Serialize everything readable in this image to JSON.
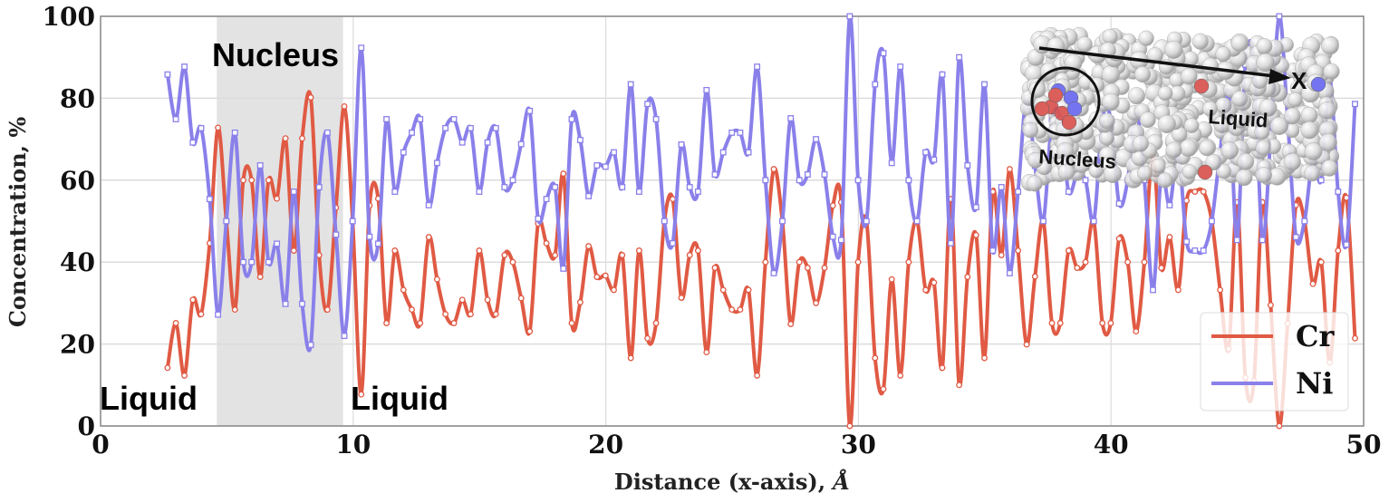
{
  "chart_data": {
    "type": "line",
    "title": "",
    "xlabel": "Distance (x-axis), ",
    "xlabel_unit": "Å",
    "ylabel": "Concentration, %",
    "xlim": [
      0,
      50
    ],
    "ylim": [
      0,
      100
    ],
    "xticks": [
      "0",
      "10",
      "20",
      "30",
      "40",
      "50"
    ],
    "yticks": [
      "0",
      "20",
      "40",
      "60",
      "80",
      "100"
    ],
    "grid": true,
    "legend_position": "bottom-right",
    "shaded_region": {
      "x_range": [
        4.6,
        9.6
      ],
      "color": "#e3e3e3"
    },
    "annotations": {
      "nucleus": "Nucleus",
      "liquid_left": "Liquid",
      "liquid_right": "Liquid"
    },
    "inset": {
      "nucleus_label": "Nucleus",
      "liquid_label": "Liquid",
      "axis_label": "X"
    },
    "x": [
      2.65,
      2.98,
      3.32,
      3.65,
      3.98,
      4.32,
      4.65,
      4.98,
      5.32,
      5.65,
      5.98,
      6.32,
      6.65,
      6.98,
      7.32,
      7.65,
      7.98,
      8.32,
      8.65,
      8.98,
      9.32,
      9.65,
      9.98,
      10.32,
      10.65,
      10.99,
      11.32,
      11.65,
      11.99,
      12.32,
      12.65,
      12.99,
      13.32,
      13.65,
      13.99,
      14.32,
      14.65,
      14.99,
      15.32,
      15.65,
      15.99,
      16.32,
      16.65,
      16.99,
      17.32,
      17.65,
      17.99,
      18.32,
      18.65,
      18.99,
      19.32,
      19.65,
      19.99,
      20.32,
      20.65,
      20.99,
      21.32,
      21.65,
      21.99,
      22.32,
      22.65,
      22.99,
      23.32,
      23.65,
      23.99,
      24.32,
      24.65,
      24.99,
      25.32,
      25.65,
      25.99,
      26.32,
      26.65,
      26.99,
      27.32,
      27.66,
      27.99,
      28.32,
      28.66,
      28.99,
      29.32,
      29.66,
      29.99,
      30.32,
      30.66,
      30.99,
      31.32,
      31.66,
      31.99,
      32.32,
      32.66,
      32.99,
      33.32,
      33.66,
      33.99,
      34.32,
      34.66,
      34.99,
      35.32,
      35.66,
      35.99,
      36.32,
      36.66,
      36.99,
      37.32,
      37.66,
      37.99,
      38.32,
      38.66,
      38.99,
      39.32,
      39.66,
      39.99,
      40.32,
      40.66,
      40.99,
      41.32,
      41.66,
      41.99,
      42.32,
      42.66,
      42.99,
      43.32,
      43.66,
      43.99,
      44.32,
      44.66,
      44.99,
      45.32,
      45.66,
      45.99,
      46.32,
      46.66,
      46.99,
      47.32,
      47.66,
      47.99,
      48.32,
      48.66,
      48.99,
      49.32,
      49.66
    ],
    "series": [
      {
        "name": "Cr",
        "color": "#e05a44",
        "marker": "circle",
        "values": [
          14.2,
          25.1,
          12.3,
          30.8,
          27.3,
          44.6,
          72.8,
          50,
          28.4,
          60,
          60,
          36.4,
          60,
          55.5,
          70.2,
          42.8,
          70.2,
          80.2,
          41.7,
          28.4,
          53.3,
          78,
          50,
          7.7,
          53.8,
          55.5,
          25.1,
          42.8,
          33.2,
          28.4,
          25.1,
          46.1,
          35.8,
          27.3,
          25.1,
          30.8,
          27.3,
          42.8,
          30.8,
          27.3,
          41.7,
          40,
          31.2,
          23.1,
          49.4,
          44.6,
          41.7,
          61.6,
          25.1,
          30.2,
          43.9,
          36.4,
          36.7,
          33.2,
          41.7,
          16.6,
          42.8,
          21.4,
          25.1,
          50,
          55.4,
          31.3,
          41.7,
          42.8,
          18.0,
          38.6,
          33.2,
          28.4,
          28.4,
          33.2,
          12.3,
          40,
          62.7,
          50,
          24.9,
          40,
          38.6,
          30,
          38.6,
          53.8,
          54.6,
          0,
          40,
          50,
          16.6,
          9,
          35.8,
          12.3,
          40,
          50,
          33.2,
          35,
          14.2,
          55.4,
          10,
          36.4,
          46.6,
          16.6,
          57.2,
          41.7,
          62.7,
          42.8,
          19.9,
          36.5,
          50,
          25.1,
          25.1,
          42.8,
          38.6,
          40,
          50,
          25.1,
          25.1,
          45.7,
          40,
          23.1,
          40,
          66.8,
          38.6,
          46.1,
          33.2,
          55,
          57.2,
          57.2,
          50,
          33.2,
          18.8,
          54.6,
          11.8,
          11,
          54.6,
          29.5,
          0,
          25,
          53.9,
          50,
          34.7,
          40,
          15.5,
          42.8,
          55.7,
          21.4
        ]
      },
      {
        "name": "Ni",
        "color": "#8a80ea",
        "marker": "square",
        "values": [
          85.8,
          74.9,
          87.7,
          69.2,
          72.7,
          55.4,
          27.2,
          50,
          71.6,
          40,
          40,
          63.6,
          40,
          44.5,
          29.8,
          57.2,
          29.8,
          19.8,
          58.3,
          71.6,
          46.7,
          22,
          50,
          92.3,
          46.2,
          44.5,
          74.9,
          57.2,
          66.8,
          71.6,
          74.9,
          53.9,
          64.2,
          72.7,
          74.9,
          69.2,
          72.7,
          57.2,
          69.2,
          72.7,
          58.3,
          60,
          68.8,
          76.9,
          50.6,
          55.4,
          58.3,
          38.4,
          74.9,
          69.8,
          56.1,
          63.6,
          63.3,
          66.8,
          58.3,
          83.4,
          57.2,
          78.6,
          74.9,
          50,
          44.6,
          68.7,
          58.3,
          57.2,
          82,
          61.4,
          66.8,
          71.6,
          71.6,
          66.8,
          87.7,
          60,
          37.3,
          50,
          75.1,
          60,
          61.4,
          70,
          61.4,
          46.2,
          45.4,
          100,
          60,
          50,
          83.4,
          91,
          64.2,
          87.7,
          60,
          50,
          66.8,
          65,
          85.8,
          44.6,
          90,
          63.6,
          53.4,
          83.4,
          42.8,
          58.3,
          37.3,
          57.2,
          80.1,
          63.5,
          50,
          74.9,
          74.9,
          57.2,
          61.4,
          60,
          50,
          74.9,
          74.9,
          54.3,
          60,
          76.9,
          60,
          33.2,
          61.4,
          53.9,
          66.8,
          45,
          42.8,
          42.8,
          50,
          66.8,
          81.2,
          45.4,
          88.2,
          89,
          45.4,
          70.5,
          100,
          75,
          46.1,
          50,
          65.3,
          60,
          84.5,
          57.2,
          44.3,
          78.6
        ]
      }
    ]
  }
}
